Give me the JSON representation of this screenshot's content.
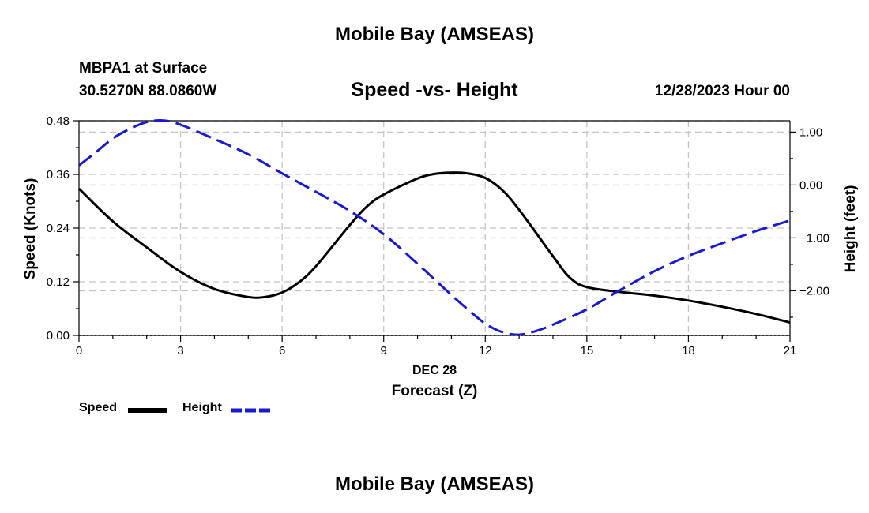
{
  "header": {
    "title": "Mobile Bay (AMSEAS)",
    "station": "MBPA1 at Surface",
    "coordinates": "30.5270N  88.0860W",
    "datetime": "12/28/2023 Hour 00"
  },
  "footer": {
    "title": "Mobile Bay (AMSEAS)"
  },
  "chart_data": {
    "type": "line",
    "title": "Speed -vs- Height",
    "xlabel": "Forecast (Z)",
    "xsublabel": "DEC 28",
    "ylabel_left": "Speed (Knots)",
    "ylabel_right": "Height (feet)",
    "xlim": [
      0,
      21
    ],
    "ylim_left": [
      0,
      0.48
    ],
    "ylim_right": [
      -2.844,
      1.215
    ],
    "x_ticks": [
      0,
      3,
      6,
      9,
      12,
      15,
      18,
      21
    ],
    "x_tick_labels": [
      "0",
      "3",
      "6",
      "9",
      "12",
      "15",
      "18",
      "21"
    ],
    "y_left_ticks": [
      0,
      0.12,
      0.24,
      0.36,
      0.48
    ],
    "y_left_tick_labels": [
      "0.00",
      "0.12",
      "0.24",
      "0.36",
      "0.48"
    ],
    "y_right_ticks": [
      -2,
      -1,
      0,
      1
    ],
    "y_right_tick_labels": [
      "−2.00",
      "−1.00",
      "0.00",
      "1.00"
    ],
    "grid": true,
    "legend_position": "bottom-left",
    "series": [
      {
        "name": "Speed",
        "axis": "left",
        "color": "#000000",
        "style": "solid",
        "x": [
          0,
          1,
          2,
          3,
          4,
          5,
          5.5,
          6,
          6.5,
          7,
          8,
          8.5,
          9,
          10,
          10.5,
          11,
          11.5,
          12,
          12.5,
          13,
          14,
          14.5,
          15,
          16,
          17,
          18,
          19,
          20,
          21
        ],
        "values": [
          0.328,
          0.255,
          0.197,
          0.142,
          0.104,
          0.086,
          0.086,
          0.096,
          0.119,
          0.155,
          0.247,
          0.288,
          0.315,
          0.351,
          0.361,
          0.364,
          0.362,
          0.352,
          0.325,
          0.281,
          0.177,
          0.129,
          0.108,
          0.097,
          0.089,
          0.078,
          0.064,
          0.048,
          0.029
        ]
      },
      {
        "name": "Height",
        "axis": "right",
        "color": "#1a1acd",
        "style": "dashed",
        "x": [
          0,
          0.5,
          1,
          1.5,
          2,
          2.5,
          3,
          4,
          5,
          6,
          7,
          8,
          9,
          10,
          11,
          11.5,
          12,
          12.5,
          13,
          13.5,
          14,
          15,
          16,
          17,
          18,
          19,
          20,
          21
        ],
        "values": [
          0.37,
          0.62,
          0.88,
          1.06,
          1.19,
          1.22,
          1.14,
          0.87,
          0.58,
          0.22,
          -0.13,
          -0.49,
          -0.93,
          -1.49,
          -2.08,
          -2.36,
          -2.62,
          -2.78,
          -2.83,
          -2.76,
          -2.64,
          -2.35,
          -1.98,
          -1.63,
          -1.34,
          -1.1,
          -0.87,
          -0.67
        ]
      }
    ]
  }
}
